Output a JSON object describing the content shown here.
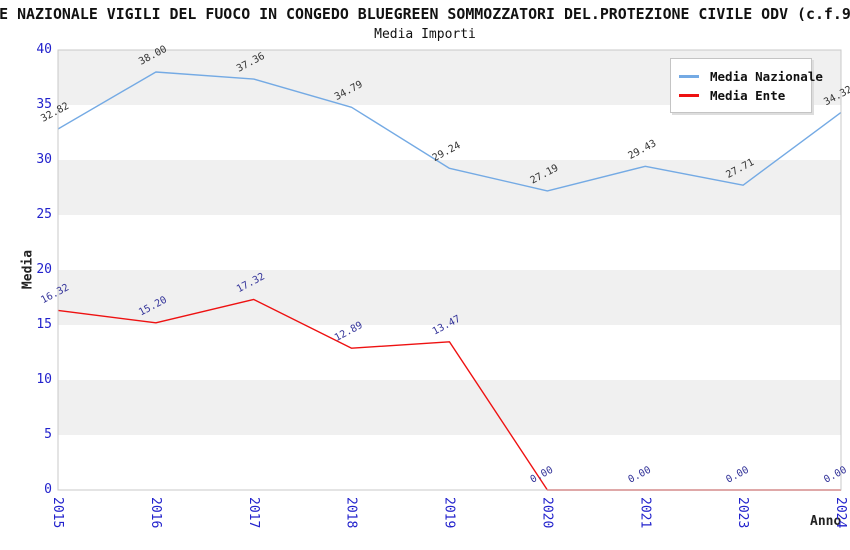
{
  "title": "E NAZIONALE VIGILI DEL FUOCO IN CONGEDO BLUEGREEN SOMMOZZATORI DEL.PROTEZIONE CIVILE ODV (c.f.9",
  "subtitle": "Media Importi",
  "chart_data": {
    "type": "line",
    "title": "Media Importi",
    "xlabel": "Anno",
    "ylabel": "Media",
    "categories": [
      "2015",
      "2016",
      "2017",
      "2018",
      "2019",
      "2020",
      "2021",
      "2023",
      "2024"
    ],
    "series": [
      {
        "name": "Media Nazionale",
        "color": "#74aae4",
        "label_color": "#333333",
        "values": [
          32.82,
          38.0,
          37.36,
          34.79,
          29.24,
          27.19,
          29.43,
          27.71,
          34.32
        ]
      },
      {
        "name": "Media Ente",
        "color": "#ee1111",
        "label_color": "#333399",
        "values": [
          16.32,
          15.2,
          17.32,
          12.89,
          13.47,
          0.0,
          0.0,
          0.0,
          0.0
        ]
      }
    ],
    "ylim": [
      0,
      40
    ],
    "ytick_step": 5,
    "grid": "alternating-horizontal-bands",
    "band_color": "#f0f0f0",
    "border_color": "#c8c8c8",
    "tick_label_color": "#2222cc",
    "legend_position": "top-right",
    "point_label_decimals": 2
  }
}
